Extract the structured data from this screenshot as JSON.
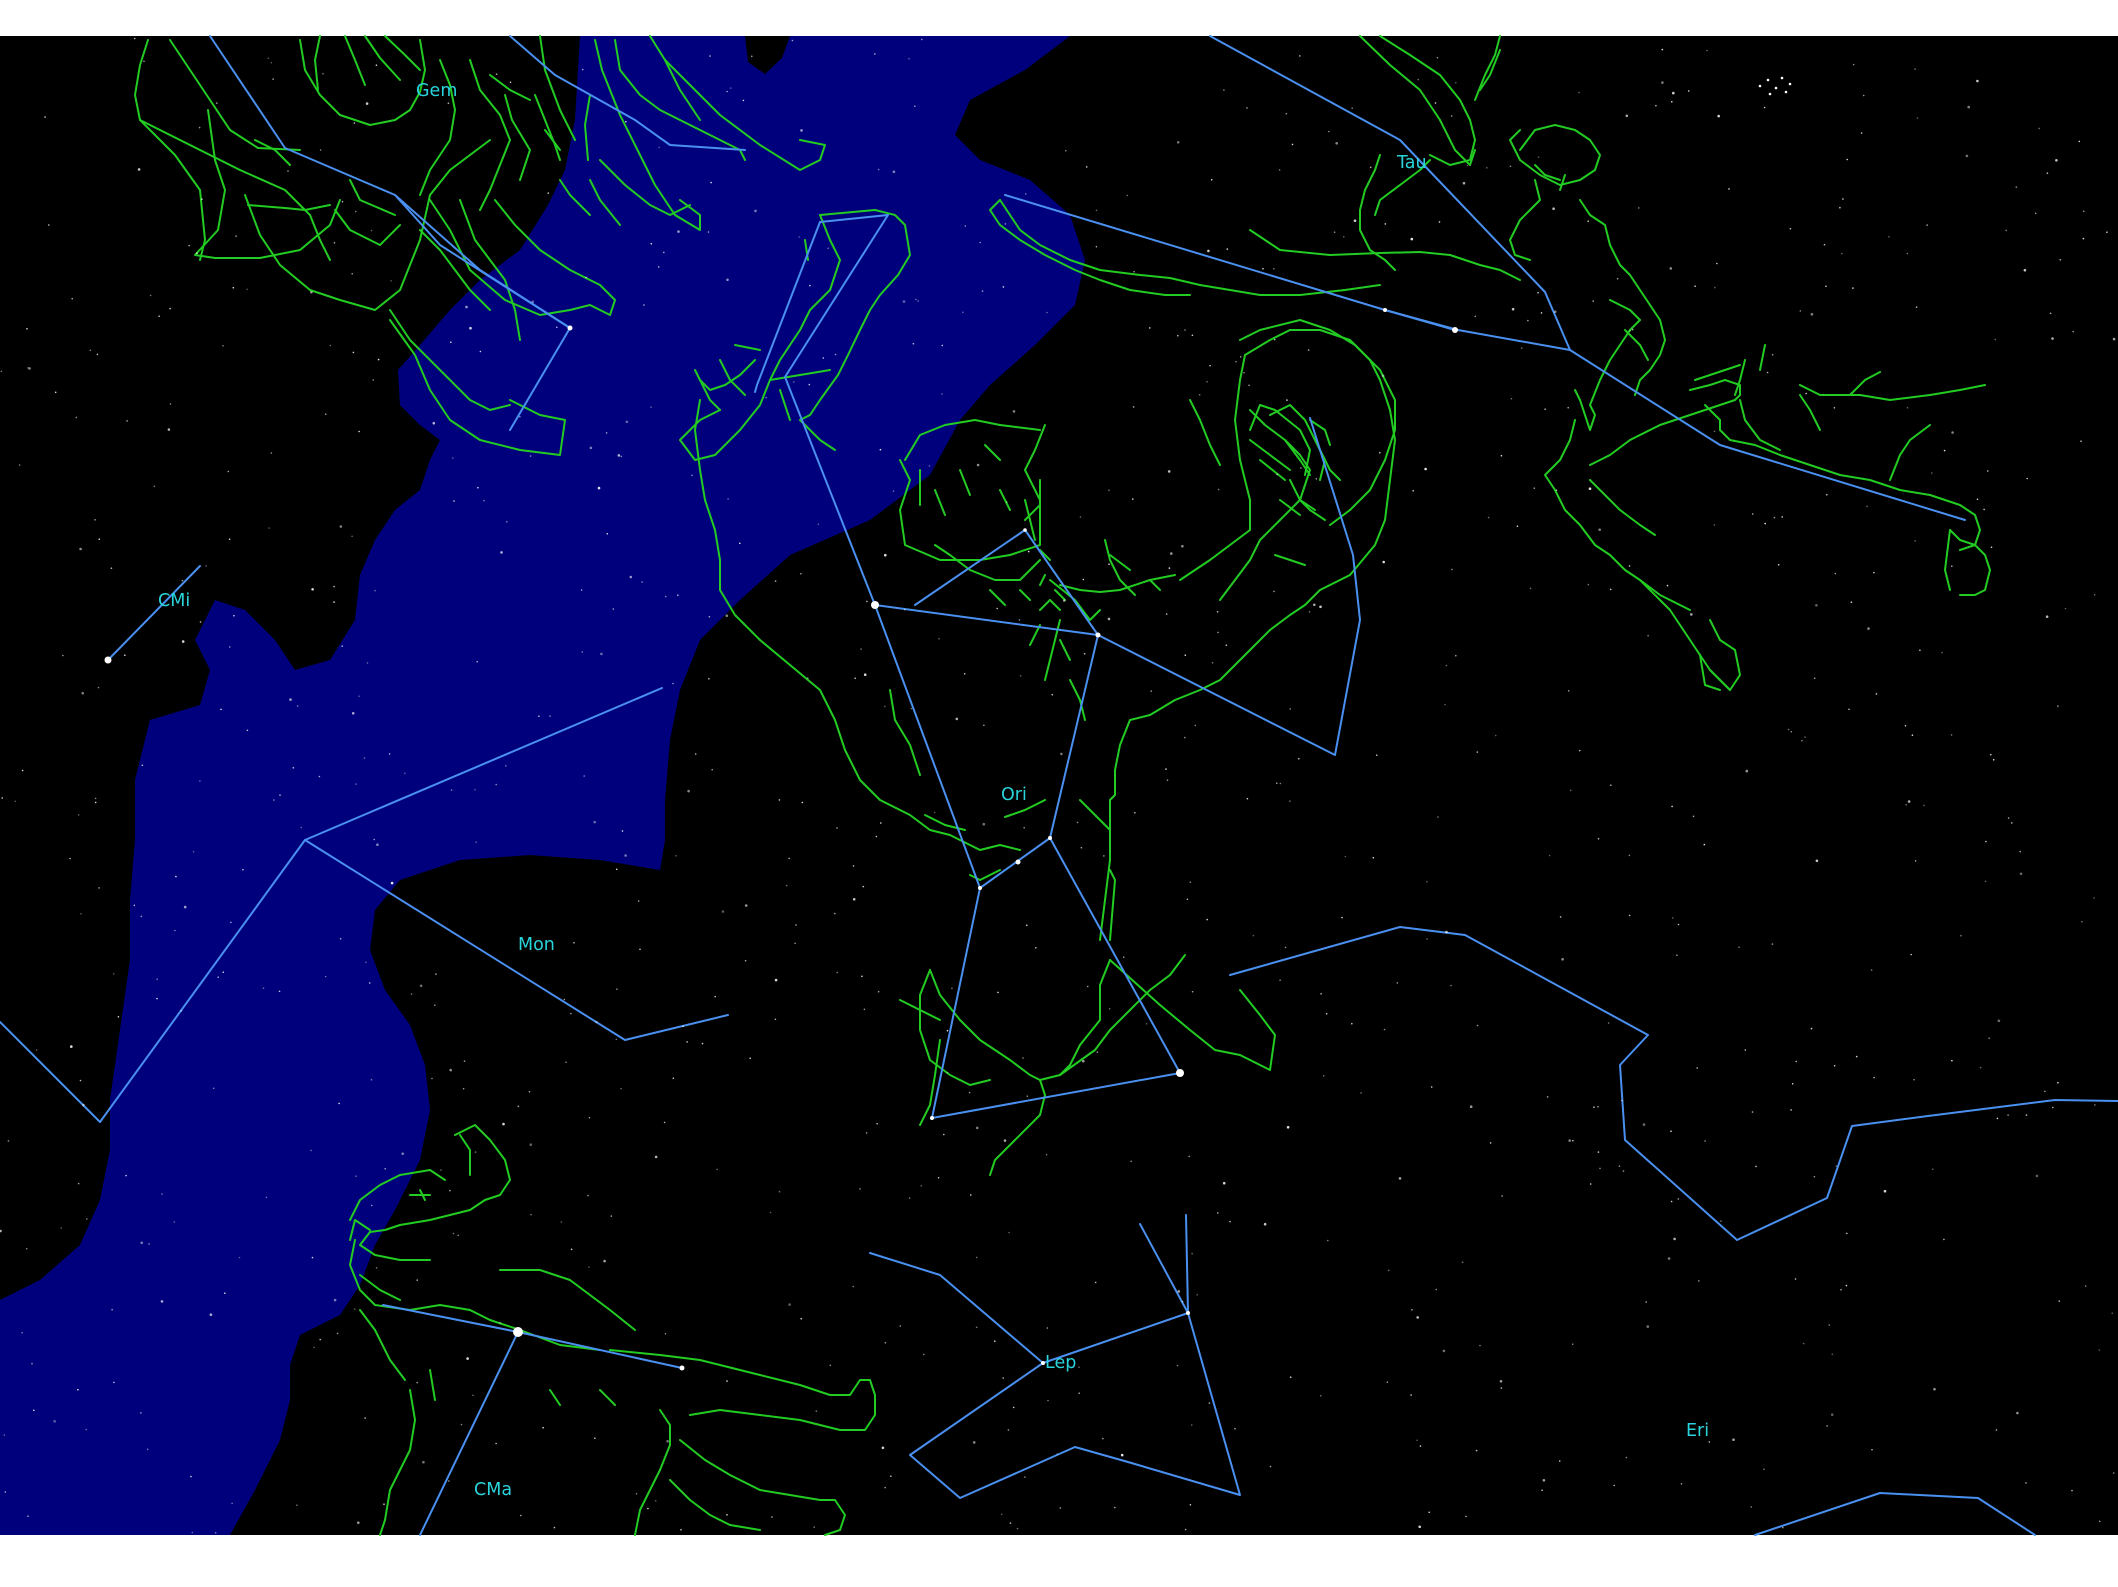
{
  "colors": {
    "background": "#ffffff",
    "sky": "#000000",
    "milky_way": "#00007c",
    "constellation_lines": "#4a90f0",
    "constellation_figures": "#22cc22",
    "labels": "#2ad4dc",
    "stars": "#ffffff"
  },
  "constellations": [
    {
      "abbr": "Gem"
    },
    {
      "abbr": "Tau"
    },
    {
      "abbr": "CMi"
    },
    {
      "abbr": "Ori"
    },
    {
      "abbr": "Mon"
    },
    {
      "abbr": "Lep"
    },
    {
      "abbr": "Eri"
    },
    {
      "abbr": "CMa"
    }
  ]
}
